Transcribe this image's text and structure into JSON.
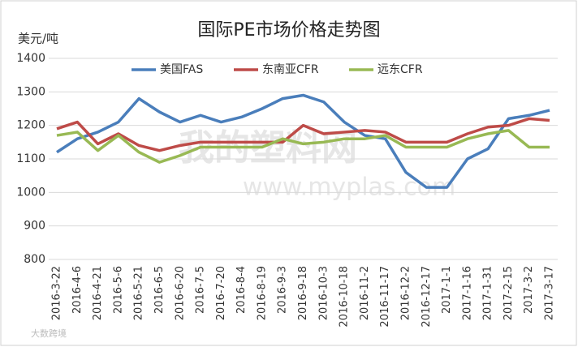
{
  "chart_data": {
    "type": "line",
    "title": "国际PE市场价格走势图",
    "y_label": "美元/吨",
    "categories": [
      "2016-3-22",
      "2016-4-6",
      "2016-4-21",
      "2016-5-6",
      "2016-5-21",
      "2016-6-5",
      "2016-6-20",
      "2016-7-5",
      "2016-7-20",
      "2016-8-4",
      "2016-8-19",
      "2016-9-3",
      "2016-9-18",
      "2016-10-3",
      "2016-10-18",
      "2016-11-2",
      "2016-11-17",
      "2016-12-2",
      "2016-12-17",
      "2017-1-1",
      "2017-1-16",
      "2017-1-31",
      "2017-2-15",
      "2017-3-2",
      "2017-3-17"
    ],
    "series": [
      {
        "name": "美国FAS",
        "color": "#4a7ebb",
        "values": [
          1120,
          1160,
          1180,
          1210,
          1280,
          1240,
          1210,
          1230,
          1210,
          1225,
          1250,
          1280,
          1290,
          1270,
          1210,
          1170,
          1160,
          1060,
          1015,
          1015,
          1100,
          1130,
          1220,
          1230,
          1245
        ]
      },
      {
        "name": "东南亚CFR",
        "color": "#be4b48",
        "values": [
          1190,
          1210,
          1145,
          1175,
          1140,
          1125,
          1140,
          1150,
          1150,
          1150,
          1150,
          1150,
          1200,
          1175,
          1180,
          1185,
          1180,
          1150,
          1150,
          1150,
          1175,
          1195,
          1200,
          1220,
          1215
        ]
      },
      {
        "name": "远东CFR",
        "color": "#98b954",
        "values": [
          1170,
          1180,
          1125,
          1170,
          1120,
          1090,
          1110,
          1135,
          1135,
          1135,
          1135,
          1160,
          1145,
          1150,
          1160,
          1160,
          1170,
          1135,
          1135,
          1135,
          1160,
          1175,
          1185,
          1135,
          1135
        ]
      }
    ],
    "ylim": [
      800,
      1400
    ],
    "yticks": [
      800,
      900,
      1000,
      1100,
      1200,
      1300,
      1400
    ],
    "grid": true,
    "legend": "top",
    "annotations": [
      "我的塑料网",
      "www.myplas.com",
      "大数跨境"
    ]
  }
}
